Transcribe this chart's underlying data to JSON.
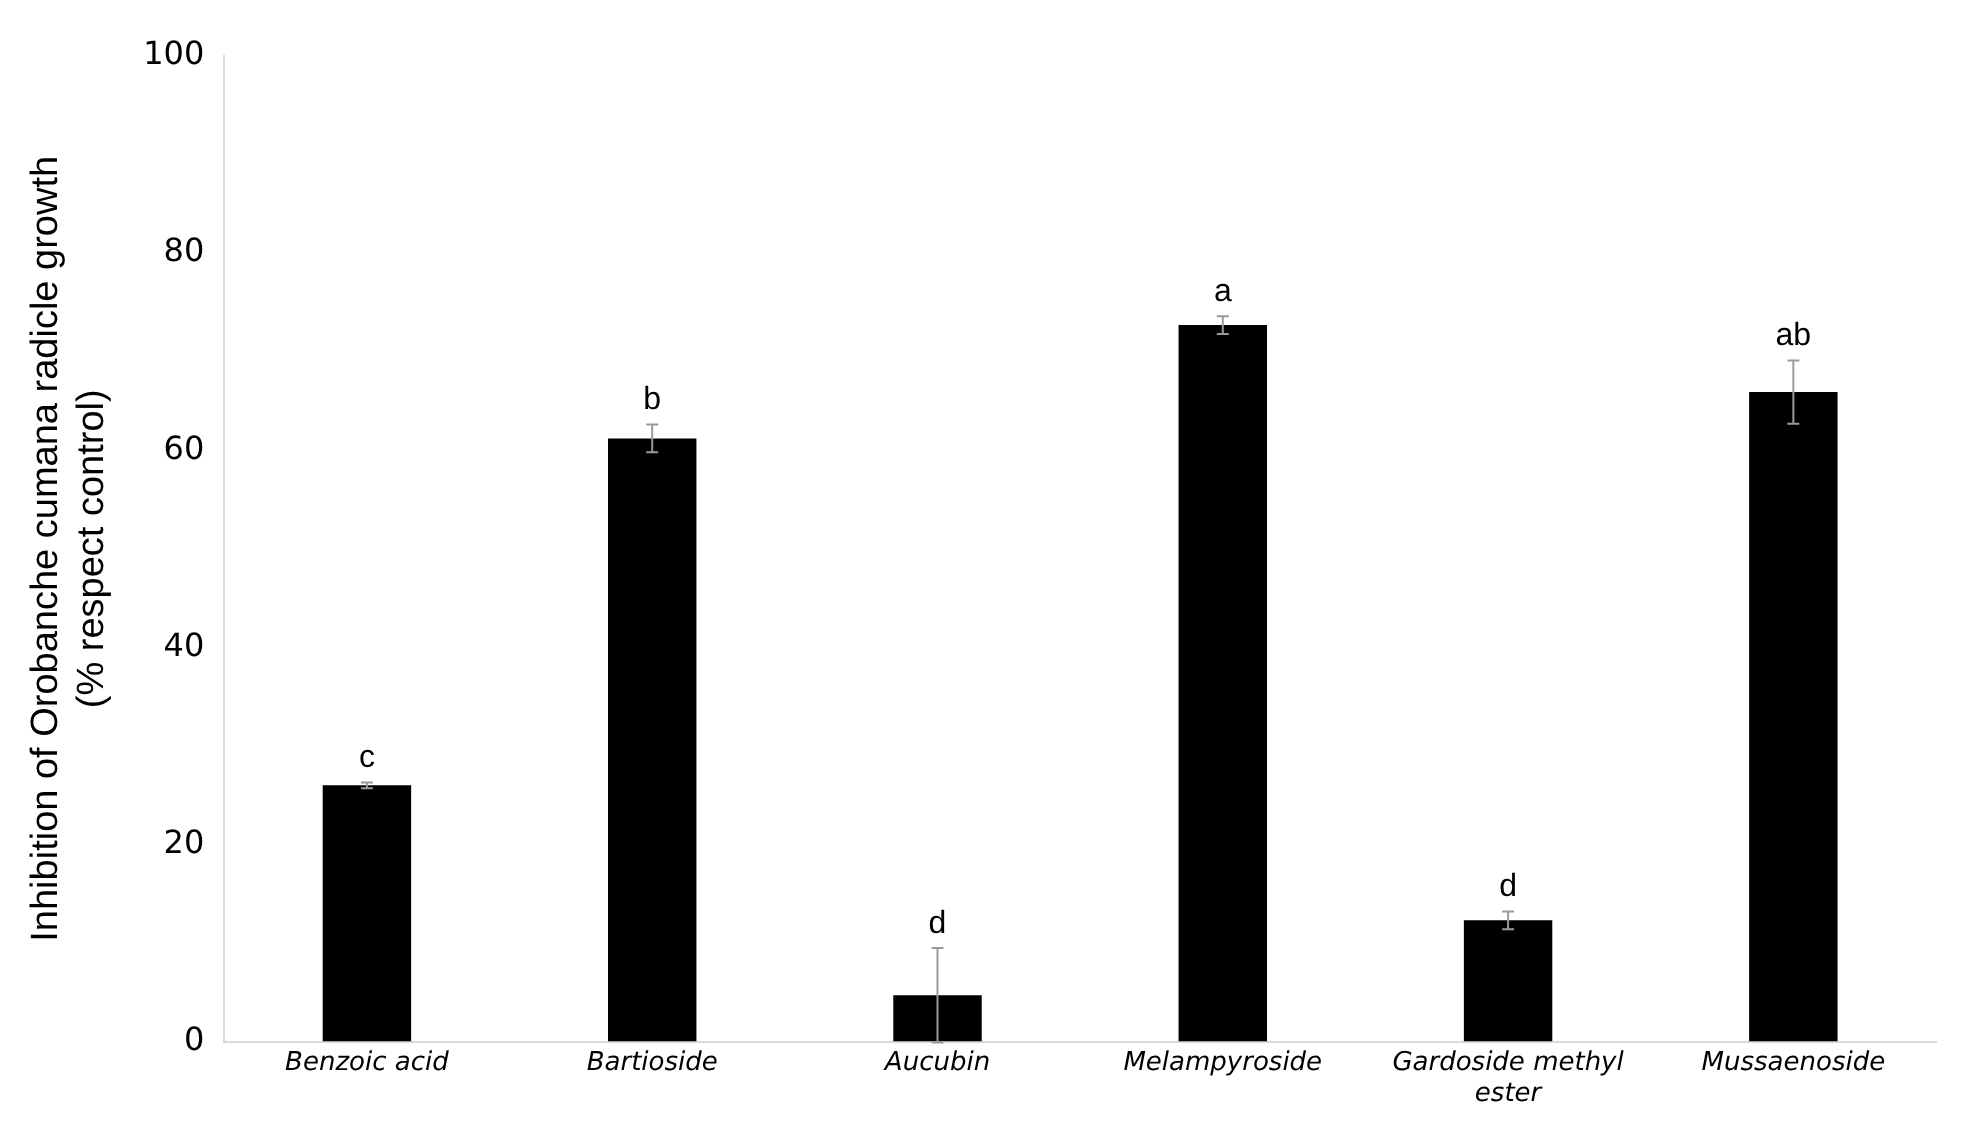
{
  "chart_data": {
    "type": "bar",
    "ylabel": "Inhibition of Orobanche cumana radicle growth (% respect control)",
    "categories": [
      "Benzoic acid",
      "Bartioside",
      "Aucubin",
      "Melampyroside",
      "Gardoside methyl ester",
      "Mussaenoside"
    ],
    "values": [
      26.0,
      61.2,
      4.7,
      72.7,
      12.3,
      65.9
    ],
    "errors": [
      0.3,
      1.4,
      4.8,
      0.9,
      0.9,
      3.2
    ],
    "color": "#000000",
    "ylim": [
      0,
      100
    ],
    "yticks": [
      0,
      20,
      40,
      60,
      80,
      100
    ],
    "grid": false,
    "legend": false,
    "annotations": [
      {
        "text": "c",
        "x": "Benzoic acid",
        "y": 26.3
      },
      {
        "text": "b",
        "x": "Bartioside",
        "y": 62.6
      },
      {
        "text": "d",
        "x": "Aucubin",
        "y": 9.5
      },
      {
        "text": "a",
        "x": "Melampyroside",
        "y": 73.6
      },
      {
        "text": "d",
        "x": "Gardoside methyl ester",
        "y": 13.2
      },
      {
        "text": "ab",
        "x": "Mussaenoside",
        "y": 69.1
      }
    ]
  }
}
